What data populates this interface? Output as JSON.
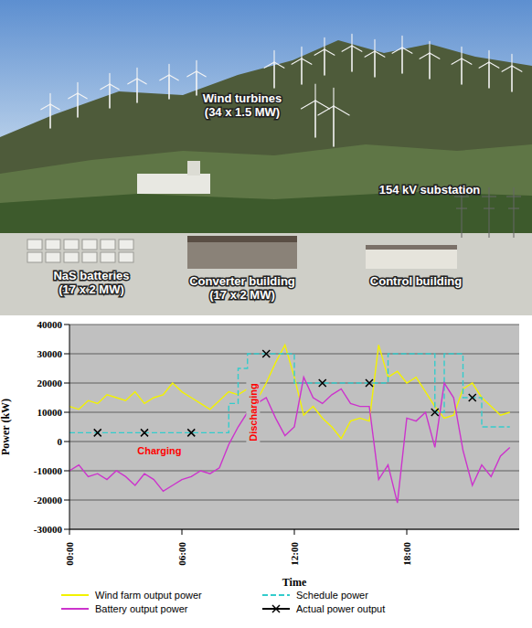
{
  "photo": {
    "labels": [
      "Wind turbines (34 x 1.5 MW)",
      "154 kV substation",
      "NaS batteries (17 x 2 MW)",
      "Converter building (17 x 2 MW)",
      "Control building"
    ]
  },
  "chart_data": {
    "type": "line",
    "x_label": "Time",
    "y_label": "Power (kW)",
    "x": [
      0,
      0.5,
      1,
      1.5,
      2,
      2.5,
      3,
      3.5,
      4,
      4.5,
      5,
      5.5,
      6,
      6.5,
      7,
      7.5,
      8,
      8.5,
      9,
      9.5,
      10,
      10.5,
      11,
      11.5,
      12,
      12.5,
      13,
      13.5,
      14,
      14.5,
      15,
      15.5,
      16,
      16.5,
      17,
      17.5,
      18,
      18.5,
      19,
      19.5,
      20,
      20.5,
      21,
      21.5,
      22,
      22.5,
      23,
      23.5
    ],
    "xlim": [
      0,
      24
    ],
    "xticks": [
      {
        "value": 0,
        "label": "00:00"
      },
      {
        "value": 6,
        "label": "06:00"
      },
      {
        "value": 12,
        "label": "12:00"
      },
      {
        "value": 18,
        "label": "18:00"
      }
    ],
    "ylim": [
      -30000,
      40000
    ],
    "yticks": [
      -30000,
      -20000,
      -10000,
      0,
      10000,
      20000,
      30000,
      40000
    ],
    "grid": true,
    "legend": "bottom",
    "series": [
      {
        "name": "Wind farm output power",
        "color": "#f2f200",
        "type": "line",
        "values": [
          12000,
          11000,
          14000,
          13000,
          16000,
          15000,
          14000,
          17000,
          13000,
          15000,
          16000,
          20000,
          17000,
          15000,
          13000,
          11000,
          14000,
          17000,
          16000,
          18000,
          14000,
          20000,
          27000,
          33000,
          22000,
          9000,
          12000,
          8000,
          5000,
          1000,
          7000,
          8000,
          7000,
          33000,
          22000,
          24000,
          20000,
          22000,
          17000,
          12000,
          8000,
          9000,
          18000,
          20000,
          15000,
          12000,
          9000,
          10000
        ]
      },
      {
        "name": "Schedule power",
        "color": "#33cccc",
        "type": "step",
        "line_style": "dashed",
        "values": [
          3000,
          3000,
          3000,
          3000,
          3000,
          3000,
          3000,
          3000,
          3000,
          3000,
          3000,
          3000,
          3000,
          3000,
          3000,
          3000,
          3000,
          13000,
          25000,
          30000,
          30000,
          30000,
          30000,
          30000,
          20000,
          20000,
          20000,
          20000,
          20000,
          20000,
          20000,
          20000,
          20000,
          20000,
          30000,
          30000,
          30000,
          30000,
          30000,
          10000,
          30000,
          30000,
          15000,
          15000,
          5000,
          5000,
          5000,
          5000
        ]
      },
      {
        "name": "Battery output power",
        "color": "#cc33cc",
        "type": "line",
        "values": [
          -10000,
          -8000,
          -12000,
          -11000,
          -13000,
          -10000,
          -12000,
          -15000,
          -11000,
          -13000,
          -17000,
          -15000,
          -13000,
          -12000,
          -10000,
          -11000,
          -9000,
          -1000,
          5000,
          10000,
          13000,
          15000,
          8000,
          2000,
          5000,
          22000,
          15000,
          13000,
          16000,
          18000,
          13000,
          12000,
          12000,
          -13000,
          -8000,
          -21000,
          8000,
          7000,
          10000,
          -2000,
          20000,
          15000,
          -3000,
          -15000,
          -8000,
          -12000,
          -5000,
          -2000
        ]
      },
      {
        "name": "Actual power output",
        "color": "#000000",
        "type": "line",
        "marker": "x",
        "values": [
          null,
          null,
          null,
          3000,
          null,
          null,
          null,
          null,
          3000,
          null,
          null,
          null,
          null,
          3000,
          null,
          null,
          null,
          null,
          null,
          null,
          null,
          30000,
          null,
          null,
          null,
          null,
          null,
          20000,
          null,
          null,
          null,
          null,
          20000,
          null,
          null,
          null,
          null,
          null,
          null,
          10000,
          null,
          null,
          null,
          15000,
          null,
          null,
          null,
          null
        ]
      }
    ],
    "annotations": [
      {
        "text": "Charging",
        "x": 4.8,
        "y": -3000,
        "color": "#ff0000"
      },
      {
        "text": "Discharging",
        "x": 9.8,
        "y": 10000,
        "color": "#ff0000",
        "orientation": "vertical"
      }
    ]
  }
}
